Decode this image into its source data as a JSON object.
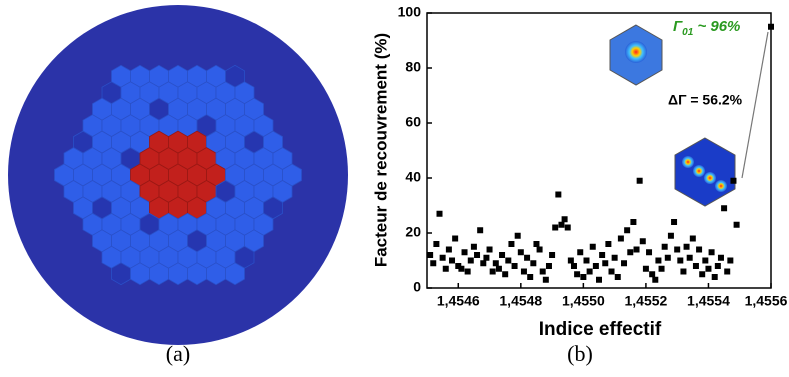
{
  "chart_data": {
    "type": "scatter",
    "ylabel": "Facteur de recouvrement (%)",
    "xlabel": "Indice effectif",
    "annotations": [
      "Γ",
      "01",
      " ~ 96%",
      "ΔΓ = 56.2%"
    ],
    "color": "#000000",
    "xlim": [
      1.4545,
      1.4556
    ],
    "ylim": [
      0,
      100
    ],
    "xticks": [
      {
        "value": 1.4546,
        "label": "1,4546"
      },
      {
        "value": 1.4548,
        "label": "1,4548"
      },
      {
        "value": 1.455,
        "label": "1,4550"
      },
      {
        "value": 1.4552,
        "label": "1,4552"
      },
      {
        "value": 1.4554,
        "label": "1,4554"
      },
      {
        "value": 1.4556,
        "label": "1,4556"
      }
    ],
    "yticks": [
      0,
      20,
      40,
      60,
      80,
      100
    ],
    "x": [
      1.45451,
      1.45452,
      1.45453,
      1.45454,
      1.45455,
      1.45456,
      1.45457,
      1.45458,
      1.45459,
      1.4546,
      1.45461,
      1.45462,
      1.45463,
      1.45464,
      1.45465,
      1.45466,
      1.45467,
      1.45468,
      1.45469,
      1.4547,
      1.45471,
      1.45472,
      1.45473,
      1.45474,
      1.45475,
      1.45476,
      1.45477,
      1.45478,
      1.45479,
      1.4548,
      1.45481,
      1.45482,
      1.45483,
      1.45484,
      1.45485,
      1.45486,
      1.45487,
      1.45488,
      1.45489,
      1.4549,
      1.45491,
      1.45492,
      1.45493,
      1.45494,
      1.45495,
      1.45496,
      1.45497,
      1.45498,
      1.45499,
      1.455,
      1.45501,
      1.45502,
      1.45503,
      1.45504,
      1.45505,
      1.45506,
      1.45507,
      1.45508,
      1.45509,
      1.4551,
      1.45511,
      1.45512,
      1.45513,
      1.45514,
      1.45515,
      1.45516,
      1.45517,
      1.45518,
      1.45519,
      1.4552,
      1.45521,
      1.45522,
      1.45523,
      1.45524,
      1.45525,
      1.45526,
      1.45527,
      1.45528,
      1.45529,
      1.4553,
      1.45531,
      1.45532,
      1.45533,
      1.45534,
      1.45535,
      1.45536,
      1.45537,
      1.45538,
      1.45539,
      1.4554,
      1.45541,
      1.45542,
      1.45543,
      1.45544,
      1.45545,
      1.45546,
      1.45547,
      1.45548,
      1.45549,
      1.4556
    ],
    "values": [
      12,
      9,
      16,
      27,
      11,
      7,
      14,
      10,
      18,
      8,
      7,
      13,
      6,
      10,
      15,
      12,
      21,
      9,
      11,
      14,
      6,
      9,
      7,
      12,
      5,
      10,
      16,
      8,
      19,
      13,
      6,
      11,
      4,
      9,
      16,
      14,
      6,
      3,
      8,
      12,
      22,
      34,
      23,
      25,
      22,
      10,
      8,
      5,
      13,
      4,
      10,
      6,
      15,
      8,
      3,
      12,
      9,
      16,
      6,
      11,
      4,
      18,
      9,
      21,
      13,
      24,
      14,
      39,
      17,
      7,
      13,
      5,
      3,
      10,
      7,
      15,
      11,
      19,
      24,
      14,
      10,
      6,
      15,
      11,
      18,
      8,
      14,
      5,
      10,
      7,
      13,
      4,
      8,
      11,
      29,
      6,
      10,
      39,
      23,
      95
    ]
  },
  "captions": [
    "(a)",
    "(b)"
  ]
}
